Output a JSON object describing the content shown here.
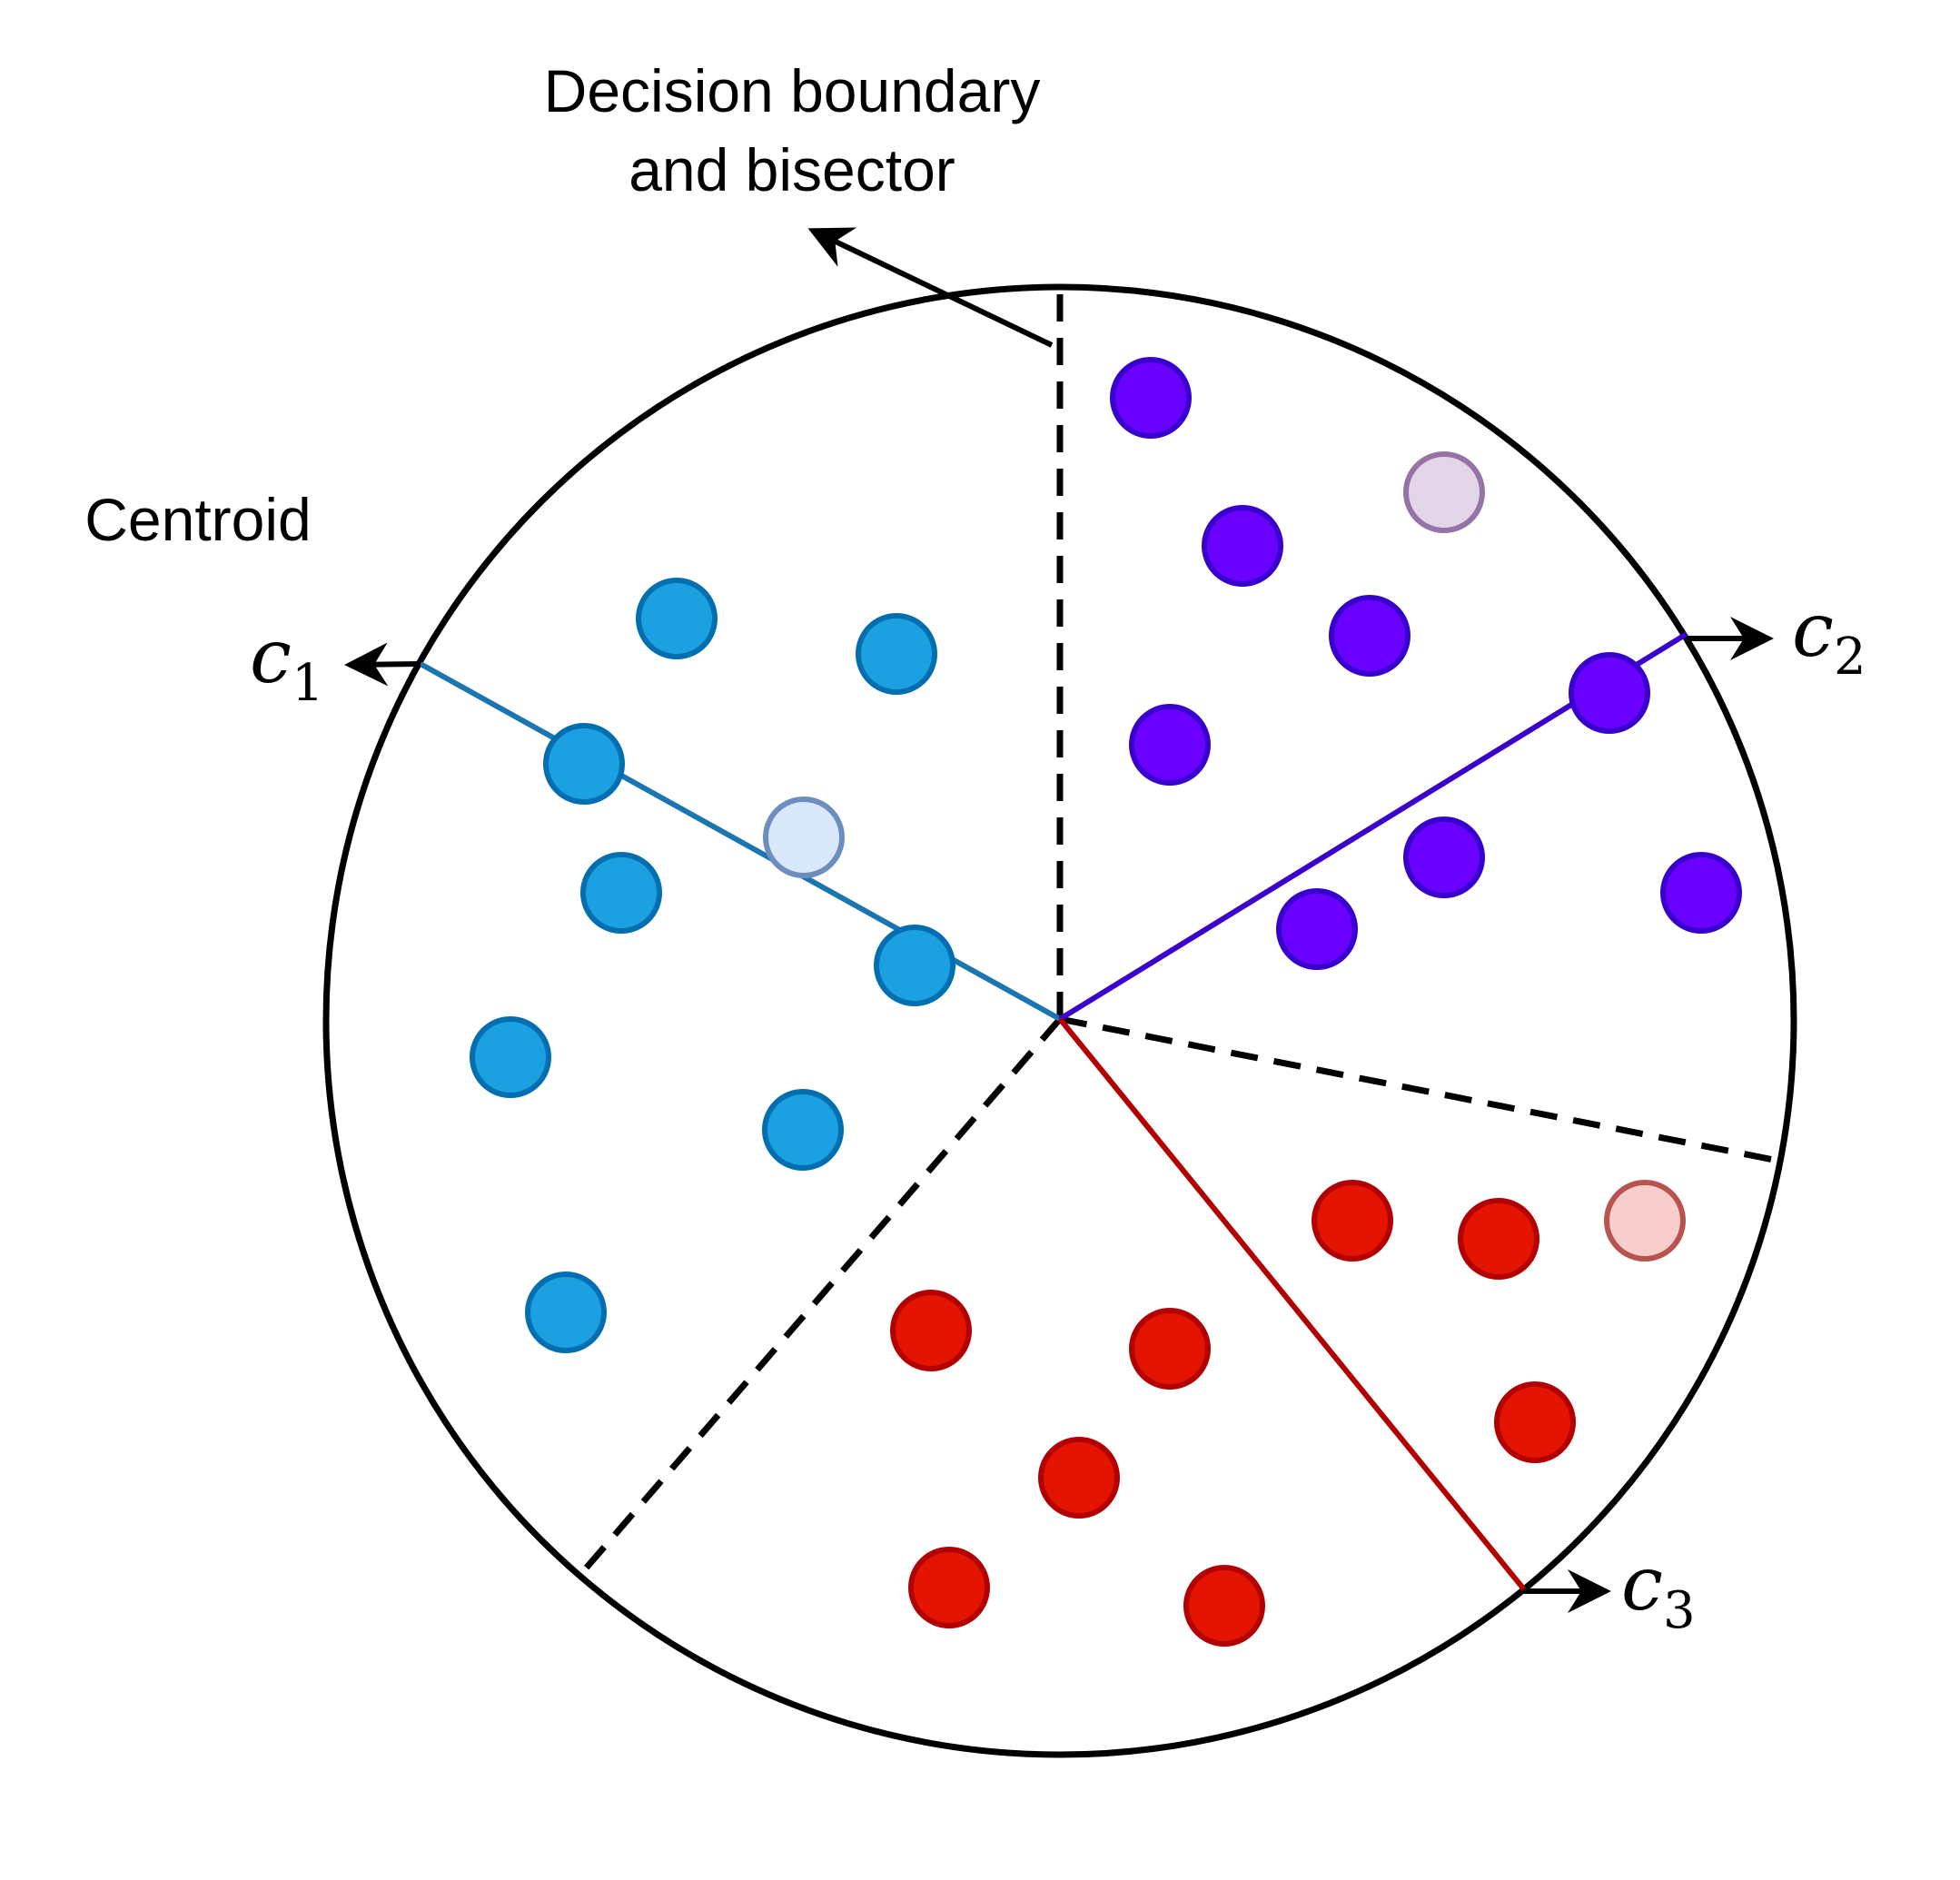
{
  "annotations": {
    "boundary_line1": "Decision boundary",
    "boundary_line2": "and bisector",
    "centroid": "Centroid"
  },
  "centroids": [
    {
      "id": "c1",
      "symbol": "c",
      "subscript": "1"
    },
    {
      "id": "c2",
      "symbol": "c",
      "subscript": "2"
    },
    {
      "id": "c3",
      "symbol": "c",
      "subscript": "3"
    }
  ],
  "colors": {
    "cluster1_fill": "#1ba1e2",
    "cluster1_stroke": "#006eaf",
    "cluster1_centroid_fill": "#dae8fc",
    "cluster1_centroid_stroke": "#6c8ebf",
    "cluster1_ray": "#1b75b0",
    "cluster2_fill": "#6a00ff",
    "cluster2_stroke": "#3700cc",
    "cluster2_centroid_fill": "#e1d5e7",
    "cluster2_centroid_stroke": "#9673a6",
    "cluster2_ray": "#3b00cc",
    "cluster3_fill": "#e51400",
    "cluster3_stroke": "#b20000",
    "cluster3_centroid_fill": "#f8cecc",
    "cluster3_centroid_stroke": "#b85450",
    "cluster3_ray": "#b20000",
    "outline": "#000000"
  }
}
